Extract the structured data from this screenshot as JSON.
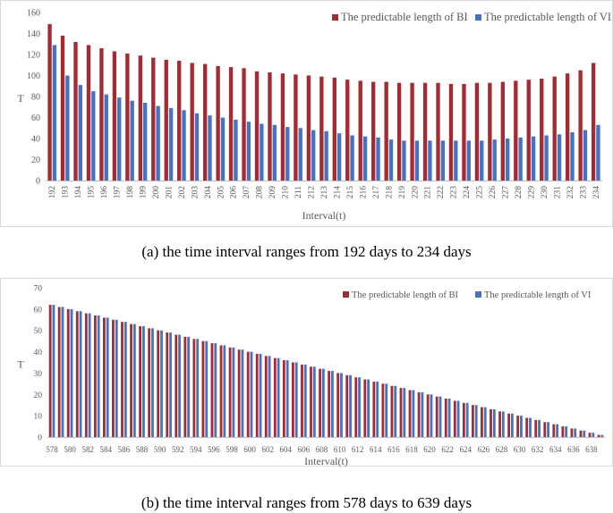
{
  "charts": [
    {
      "panel": "a",
      "caption": "(a) the time interval ranges from 192 days to 234 days",
      "chart_data": {
        "type": "bar",
        "title": "",
        "xlabel": "Interval(t)",
        "ylabel": "T",
        "ylim": [
          0,
          160
        ],
        "yticks": [
          0,
          20,
          40,
          60,
          80,
          100,
          120,
          140,
          160
        ],
        "grid": false,
        "legend": "top-right",
        "tick_every": 1,
        "categories": [
          "192",
          "193",
          "194",
          "195",
          "196",
          "197",
          "198",
          "199",
          "200",
          "201",
          "202",
          "203",
          "204",
          "205",
          "206",
          "207",
          "208",
          "209",
          "210",
          "211",
          "212",
          "213",
          "214",
          "215",
          "216",
          "217",
          "218",
          "219",
          "220",
          "221",
          "222",
          "223",
          "224",
          "225",
          "226",
          "227",
          "228",
          "229",
          "230",
          "231",
          "232",
          "233",
          "234"
        ],
        "series": [
          {
            "name": "The predictable length of BI",
            "color": "#a52a32",
            "values": [
              149,
              138,
              132,
              129,
              126,
              123,
              121,
              119,
              117,
              115,
              114,
              112,
              111,
              109,
              108,
              107,
              104,
              103,
              102,
              101,
              100,
              99,
              98,
              96,
              95,
              94,
              94,
              93,
              93,
              93,
              93,
              92,
              92,
              93,
              93,
              94,
              95,
              96,
              97,
              99,
              102,
              105,
              112
            ]
          },
          {
            "name": "The predictable length of VI",
            "color": "#4472c4",
            "values": [
              129,
              100,
              91,
              85,
              82,
              79,
              76,
              74,
              71,
              69,
              67,
              64,
              62,
              60,
              58,
              56,
              54,
              53,
              51,
              50,
              48,
              47,
              45,
              43,
              42,
              41,
              39,
              38,
              38,
              38,
              38,
              38,
              38,
              38,
              39,
              40,
              41,
              42,
              43,
              44,
              46,
              48,
              53
            ]
          }
        ]
      }
    },
    {
      "panel": "b",
      "caption": "(b) the time interval ranges from 578 days to 639 days",
      "chart_data": {
        "type": "bar",
        "title": "",
        "xlabel": "Interval(t)",
        "ylabel": "T",
        "ylim": [
          0,
          70
        ],
        "yticks": [
          0,
          10,
          20,
          30,
          40,
          50,
          60,
          70
        ],
        "grid": false,
        "legend": "top-right",
        "tick_every": 2,
        "categories": [
          "578",
          "579",
          "580",
          "581",
          "582",
          "583",
          "584",
          "585",
          "586",
          "587",
          "588",
          "589",
          "590",
          "591",
          "592",
          "593",
          "594",
          "595",
          "596",
          "597",
          "598",
          "599",
          "600",
          "601",
          "602",
          "603",
          "604",
          "605",
          "606",
          "607",
          "608",
          "609",
          "610",
          "611",
          "612",
          "613",
          "614",
          "615",
          "616",
          "617",
          "618",
          "619",
          "620",
          "621",
          "622",
          "623",
          "624",
          "625",
          "626",
          "627",
          "628",
          "629",
          "630",
          "631",
          "632",
          "633",
          "634",
          "635",
          "636",
          "637",
          "638",
          "639"
        ],
        "series": [
          {
            "name": "The predictable length of BI",
            "color": "#a52a32",
            "values": [
              62,
              61,
              60,
              59,
              58,
              57,
              56,
              55,
              54,
              53,
              52,
              51,
              50,
              49,
              48,
              47,
              46,
              45,
              44,
              43,
              42,
              41,
              40,
              39,
              38,
              37,
              36,
              35,
              34,
              33,
              32,
              31,
              30,
              29,
              28,
              27,
              26,
              25,
              24,
              23,
              22,
              21,
              20,
              19,
              18,
              17,
              16,
              15,
              14,
              13,
              12,
              11,
              10,
              9,
              8,
              7,
              6,
              5,
              4,
              3,
              2,
              1
            ]
          },
          {
            "name": "The predictable length of VI",
            "color": "#4472c4",
            "values": [
              62,
              61,
              60,
              59,
              58,
              57,
              56,
              55,
              54,
              53,
              52,
              51,
              50,
              49,
              48,
              47,
              46,
              45,
              44,
              43,
              42,
              41,
              40,
              39,
              38,
              37,
              36,
              35,
              34,
              33,
              32,
              31,
              30,
              29,
              28,
              27,
              26,
              25,
              24,
              23,
              22,
              21,
              20,
              19,
              18,
              17,
              16,
              15,
              14,
              13,
              12,
              11,
              10,
              9,
              8,
              7,
              6,
              5,
              4,
              3,
              2,
              1
            ]
          }
        ]
      }
    }
  ]
}
